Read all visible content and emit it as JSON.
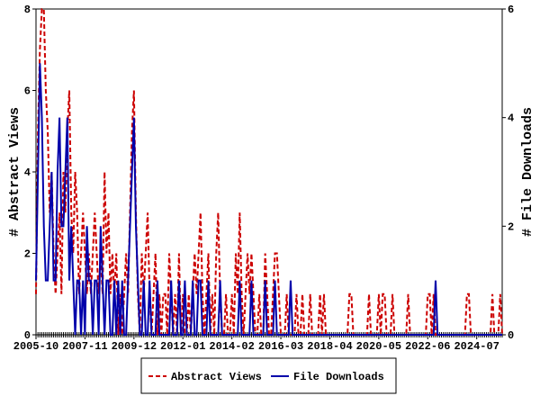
{
  "chart_data": {
    "type": "line",
    "ylabel": "# Abstract Views",
    "y2label": "# File Downloads",
    "ylim": [
      0,
      8
    ],
    "yticks": [
      0,
      2,
      4,
      6,
      8
    ],
    "y2lim": [
      0,
      6
    ],
    "y2ticks": [
      0,
      2,
      4,
      6
    ],
    "legend": "bottom",
    "categories": [
      "2005-10",
      null,
      null,
      null,
      null,
      null,
      null,
      null,
      null,
      null,
      null,
      null,
      null,
      null,
      null,
      null,
      null,
      null,
      null,
      null,
      null,
      null,
      null,
      null,
      null,
      "2007-11",
      null,
      null,
      null,
      null,
      null,
      null,
      null,
      null,
      null,
      null,
      null,
      null,
      null,
      null,
      null,
      null,
      null,
      null,
      null,
      null,
      null,
      null,
      null,
      null,
      "2009-12",
      null,
      null,
      null,
      null,
      null,
      null,
      null,
      null,
      null,
      null,
      null,
      null,
      null,
      null,
      null,
      null,
      null,
      null,
      null,
      null,
      null,
      null,
      null,
      null,
      "2012-01",
      null,
      null,
      null,
      null,
      null,
      null,
      null,
      null,
      null,
      null,
      null,
      null,
      null,
      null,
      null,
      null,
      null,
      null,
      null,
      null,
      null,
      null,
      null,
      null,
      "2014-02",
      null,
      null,
      null,
      null,
      null,
      null,
      null,
      null,
      null,
      null,
      null,
      null,
      null,
      null,
      null,
      null,
      null,
      null,
      null,
      null,
      null,
      null,
      null,
      null,
      "2016-03",
      null,
      null,
      null,
      null,
      null,
      null,
      null,
      null,
      null,
      null,
      null,
      null,
      null,
      null,
      null,
      null,
      null,
      null,
      null,
      null,
      null,
      null,
      null,
      null,
      "2018-04",
      null,
      null,
      null,
      null,
      null,
      null,
      null,
      null,
      null,
      null,
      null,
      null,
      null,
      null,
      null,
      null,
      null,
      null,
      null,
      null,
      null,
      null,
      null,
      null,
      "2020-05",
      null,
      null,
      null,
      null,
      null,
      null,
      null,
      null,
      null,
      null,
      null,
      null,
      null,
      null,
      null,
      null,
      null,
      null,
      null,
      null,
      null,
      null,
      null,
      null,
      "2022-06",
      null,
      null,
      null,
      null,
      null,
      null,
      null,
      null,
      null,
      null,
      null,
      null,
      null,
      null,
      null,
      null,
      null,
      null,
      null,
      null,
      null,
      null,
      null,
      null,
      "2024-07",
      null,
      null,
      null,
      null,
      null,
      null,
      null,
      null,
      null,
      null,
      null,
      null,
      null
    ],
    "series": [
      {
        "name": "Abstract Views",
        "color": "#cc0000",
        "dashed": true,
        "values": [
          1,
          5,
          7,
          8,
          8,
          6,
          5,
          3,
          4,
          2,
          1,
          2,
          3,
          1,
          4,
          3,
          5,
          6,
          3,
          2,
          4,
          3,
          1,
          2,
          3,
          2,
          1,
          2,
          1,
          2,
          3,
          2,
          1,
          2,
          1,
          4,
          2,
          3,
          1,
          2,
          1,
          2,
          0,
          1,
          0,
          1,
          2,
          1,
          3,
          5,
          6,
          3,
          1,
          0,
          2,
          1,
          2,
          3,
          1,
          0,
          1,
          2,
          0,
          1,
          0,
          1,
          1,
          0,
          2,
          1,
          0,
          1,
          0,
          2,
          0,
          1,
          0,
          0,
          1,
          0,
          1,
          2,
          1,
          2,
          3,
          1,
          0,
          1,
          2,
          0,
          1,
          0,
          2,
          3,
          1,
          0,
          0,
          1,
          0,
          0,
          1,
          0,
          2,
          1,
          3,
          1,
          0,
          1,
          2,
          1,
          2,
          1,
          0,
          0,
          1,
          0,
          0,
          2,
          1,
          0,
          0,
          1,
          2,
          2,
          1,
          0,
          0,
          0,
          1,
          0,
          0,
          0,
          0,
          1,
          0,
          0,
          1,
          0,
          0,
          0,
          1,
          0,
          0,
          0,
          0,
          1,
          0,
          1,
          0,
          0,
          0,
          0,
          0,
          0,
          0,
          0,
          0,
          0,
          0,
          0,
          1,
          1,
          0,
          0,
          0,
          0,
          0,
          0,
          0,
          0,
          1,
          0,
          0,
          0,
          0,
          1,
          0,
          1,
          1,
          0,
          0,
          0,
          1,
          0,
          0,
          0,
          0,
          0,
          0,
          0,
          1,
          0,
          0,
          0,
          0,
          0,
          0,
          0,
          0,
          0,
          1,
          1,
          0,
          1,
          0,
          0,
          0,
          0,
          0,
          0,
          0,
          0,
          0,
          0,
          0,
          0,
          0,
          0,
          0,
          0,
          1,
          1,
          0,
          0,
          0,
          0,
          0,
          0,
          0,
          0,
          0,
          0,
          0,
          1,
          0,
          0,
          0,
          1,
          0
        ]
      },
      {
        "name": "File Downloads",
        "color": "#0000aa",
        "axis": "y2",
        "values": [
          1,
          3,
          5,
          4,
          2,
          1,
          1,
          2,
          3,
          1,
          1,
          3,
          4,
          2,
          2,
          3,
          4,
          1,
          2,
          1,
          0,
          1,
          1,
          0,
          1,
          0,
          2,
          1,
          1,
          0,
          1,
          1,
          0,
          2,
          1,
          0,
          1,
          1,
          0,
          0,
          1,
          0,
          1,
          0,
          1,
          0,
          0,
          1,
          2,
          3,
          4,
          2,
          1,
          0,
          0,
          1,
          0,
          0,
          1,
          0,
          0,
          0,
          1,
          0,
          0,
          0,
          0,
          0,
          0,
          1,
          0,
          0,
          0,
          1,
          0,
          0,
          1,
          0,
          0,
          0,
          1,
          0,
          0,
          1,
          1,
          0,
          0,
          0,
          1,
          0,
          0,
          0,
          0,
          0,
          1,
          0,
          0,
          0,
          0,
          0,
          0,
          0,
          0,
          0,
          1,
          0,
          0,
          0,
          0,
          0,
          1,
          0,
          0,
          0,
          0,
          0,
          0,
          1,
          0,
          0,
          0,
          0,
          1,
          0,
          0,
          0,
          0,
          0,
          0,
          0,
          1,
          0,
          0,
          0,
          0,
          0,
          0,
          0,
          0,
          0,
          0,
          0,
          0,
          0,
          0,
          0,
          0,
          0,
          0,
          0,
          0,
          0,
          0,
          0,
          0,
          0,
          0,
          0,
          0,
          0,
          0,
          0,
          0,
          0,
          0,
          0,
          0,
          0,
          0,
          0,
          0,
          0,
          0,
          0,
          0,
          0,
          0,
          0,
          0,
          0,
          0,
          0,
          0,
          0,
          0,
          0,
          0,
          0,
          0,
          0,
          0,
          0,
          0,
          0,
          0,
          0,
          0,
          0,
          0,
          0,
          0,
          0,
          0,
          0,
          1,
          0,
          0,
          0,
          0,
          0,
          0,
          0,
          0,
          0,
          0,
          0,
          0,
          0,
          0,
          0,
          0,
          0,
          0,
          0,
          0,
          0,
          0,
          0,
          0,
          0,
          0,
          0,
          0,
          0,
          0,
          0,
          0,
          0,
          0
        ]
      }
    ]
  }
}
